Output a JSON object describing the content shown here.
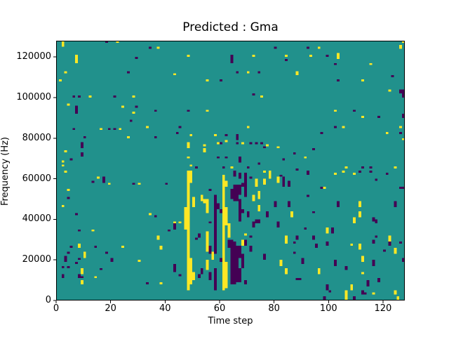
{
  "chart_data": {
    "type": "heatmap",
    "title": "Predicted : Gma",
    "xlabel": "Time step",
    "ylabel": "Frequency (Hz)",
    "x_range": [
      0,
      128
    ],
    "y_range": [
      0,
      128000
    ],
    "grid_shape": [
      128,
      128
    ],
    "bin_height_hz": 1000,
    "colormap": "viridis",
    "value_colors": {
      "low": "#440154",
      "mid": "#21918c",
      "high": "#fde725"
    },
    "background_color": "#ffffff",
    "axis_color": "#000000",
    "x_tick_values": [
      0,
      20,
      40,
      60,
      80,
      100,
      120
    ],
    "x_tick_labels": [
      "0",
      "20",
      "40",
      "60",
      "80",
      "100",
      "120"
    ],
    "y_tick_values": [
      0,
      20000,
      40000,
      60000,
      80000,
      100000,
      120000
    ],
    "y_tick_labels": [
      "0",
      "20000",
      "40000",
      "60000",
      "80000",
      "100000",
      "120000"
    ],
    "legend": "none",
    "grid": false,
    "runs_format": "[time_step, freq_bin_low, freq_bin_high] inclusive, freq bin 0 = 0 Hz at bottom, each bin = 1000 Hz",
    "yellow_runs": [
      [
        2,
        125,
        127
      ],
      [
        22,
        127,
        127
      ],
      [
        37,
        124,
        124
      ],
      [
        7,
        117,
        120
      ],
      [
        3,
        112,
        112
      ],
      [
        1,
        108,
        108
      ],
      [
        12,
        100,
        100
      ],
      [
        28,
        100,
        100
      ],
      [
        4,
        96,
        96
      ],
      [
        24,
        95,
        95
      ],
      [
        28,
        92,
        92
      ],
      [
        33,
        85,
        85
      ],
      [
        16,
        84,
        84
      ],
      [
        23,
        84,
        84
      ],
      [
        26,
        80,
        80
      ],
      [
        3,
        73,
        73
      ],
      [
        2,
        68,
        68
      ],
      [
        2,
        66,
        66
      ],
      [
        48,
        120,
        120
      ],
      [
        72,
        120,
        120
      ],
      [
        84,
        120,
        120
      ],
      [
        43,
        111,
        111
      ],
      [
        70,
        112,
        112
      ],
      [
        55,
        108,
        108
      ],
      [
        75,
        100,
        100
      ],
      [
        55,
        93,
        93
      ],
      [
        70,
        85,
        85
      ],
      [
        49,
        81,
        81
      ],
      [
        58,
        81,
        81
      ],
      [
        54,
        76,
        76
      ],
      [
        59,
        77,
        77
      ],
      [
        62,
        78,
        78
      ],
      [
        68,
        77,
        77
      ],
      [
        77,
        76,
        76
      ],
      [
        54,
        73,
        74
      ],
      [
        81,
        75,
        75
      ],
      [
        48,
        75,
        77
      ],
      [
        48,
        70,
        70
      ],
      [
        49,
        66,
        66
      ],
      [
        64,
        65,
        65
      ],
      [
        127,
        127,
        127
      ],
      [
        126,
        124,
        125
      ],
      [
        96,
        124,
        124
      ],
      [
        93,
        120,
        120
      ],
      [
        103,
        119,
        121
      ],
      [
        115,
        116,
        116
      ],
      [
        88,
        111,
        112
      ],
      [
        112,
        108,
        108
      ],
      [
        122,
        103,
        103
      ],
      [
        102,
        93,
        93
      ],
      [
        112,
        90,
        90
      ],
      [
        105,
        85,
        85
      ],
      [
        126,
        85,
        85
      ],
      [
        121,
        82,
        82
      ],
      [
        127,
        79,
        79
      ],
      [
        91,
        70,
        70
      ],
      [
        106,
        65,
        65
      ],
      [
        124,
        65,
        65
      ],
      [
        3,
        63,
        63
      ],
      [
        15,
        60,
        60
      ],
      [
        19,
        57,
        57
      ],
      [
        30,
        57,
        57
      ],
      [
        4,
        54,
        54
      ],
      [
        2,
        46,
        46
      ],
      [
        34,
        42,
        42
      ],
      [
        43,
        38,
        38
      ],
      [
        13,
        34,
        34
      ],
      [
        37,
        30,
        31
      ],
      [
        38,
        25,
        26
      ],
      [
        8,
        26,
        27
      ],
      [
        24,
        26,
        26
      ],
      [
        10,
        21,
        23
      ],
      [
        30,
        19,
        19
      ],
      [
        9,
        13,
        15
      ],
      [
        14,
        11,
        11
      ],
      [
        9,
        8,
        9
      ],
      [
        38,
        8,
        8
      ],
      [
        48,
        5,
        63
      ],
      [
        49,
        58,
        63
      ],
      [
        49,
        8,
        20
      ],
      [
        47,
        35,
        45
      ],
      [
        50,
        46,
        50
      ],
      [
        50,
        10,
        13
      ],
      [
        61,
        5,
        61
      ],
      [
        62,
        37,
        45
      ],
      [
        62,
        6,
        18
      ],
      [
        62,
        56,
        58
      ],
      [
        63,
        31,
        37
      ],
      [
        55,
        43,
        49
      ],
      [
        55,
        24,
        33
      ],
      [
        55,
        15,
        19
      ],
      [
        57,
        20,
        23
      ],
      [
        53,
        49,
        51
      ],
      [
        54,
        48,
        49
      ],
      [
        45,
        38,
        38
      ],
      [
        72,
        49,
        51
      ],
      [
        74,
        50,
        53
      ],
      [
        74,
        44,
        46
      ],
      [
        73,
        56,
        59
      ],
      [
        76,
        57,
        59
      ],
      [
        81,
        58,
        60
      ],
      [
        78,
        60,
        62
      ],
      [
        76,
        63,
        63
      ],
      [
        78,
        63,
        63
      ],
      [
        68,
        27,
        29
      ],
      [
        69,
        32,
        32
      ],
      [
        84,
        28,
        31
      ],
      [
        82,
        17,
        19
      ],
      [
        84,
        13,
        15
      ],
      [
        102,
        62,
        62
      ],
      [
        105,
        63,
        63
      ],
      [
        109,
        62,
        62
      ],
      [
        98,
        55,
        55
      ],
      [
        111,
        46,
        48
      ],
      [
        86,
        41,
        43
      ],
      [
        111,
        41,
        43
      ],
      [
        109,
        38,
        40
      ],
      [
        99,
        33,
        35
      ],
      [
        122,
        29,
        31
      ],
      [
        108,
        27,
        27
      ],
      [
        111,
        25,
        27
      ],
      [
        124,
        23,
        25
      ],
      [
        112,
        19,
        21
      ],
      [
        96,
        13,
        15
      ],
      [
        112,
        13,
        13
      ],
      [
        108,
        5,
        7
      ],
      [
        106,
        0,
        4
      ],
      [
        116,
        3,
        3
      ],
      [
        124,
        3,
        4
      ],
      [
        125,
        0,
        1
      ]
    ],
    "purple_runs": [
      [
        18,
        127,
        127
      ],
      [
        34,
        124,
        124
      ],
      [
        29,
        119,
        119
      ],
      [
        26,
        112,
        112
      ],
      [
        6,
        100,
        100
      ],
      [
        8,
        100,
        100
      ],
      [
        21,
        100,
        100
      ],
      [
        7,
        92,
        95
      ],
      [
        29,
        95,
        95
      ],
      [
        36,
        93,
        93
      ],
      [
        27,
        88,
        88
      ],
      [
        6,
        84,
        84
      ],
      [
        19,
        84,
        84
      ],
      [
        21,
        84,
        84
      ],
      [
        10,
        80,
        80
      ],
      [
        36,
        80,
        80
      ],
      [
        9,
        75,
        77
      ],
      [
        9,
        71,
        72
      ],
      [
        5,
        69,
        69
      ],
      [
        80,
        124,
        124
      ],
      [
        64,
        117,
        120
      ],
      [
        84,
        118,
        118
      ],
      [
        66,
        112,
        112
      ],
      [
        74,
        112,
        112
      ],
      [
        60,
        108,
        108
      ],
      [
        72,
        101,
        101
      ],
      [
        48,
        93,
        93
      ],
      [
        45,
        85,
        85
      ],
      [
        44,
        82,
        82
      ],
      [
        62,
        81,
        81
      ],
      [
        66,
        79,
        81
      ],
      [
        60,
        77,
        77
      ],
      [
        66,
        77,
        77
      ],
      [
        71,
        77,
        77
      ],
      [
        73,
        77,
        77
      ],
      [
        75,
        77,
        77
      ],
      [
        76,
        75,
        75
      ],
      [
        59,
        70,
        70
      ],
      [
        62,
        70,
        70
      ],
      [
        67,
        68,
        70
      ],
      [
        51,
        65,
        65
      ],
      [
        61,
        65,
        65
      ],
      [
        70,
        65,
        65
      ],
      [
        74,
        67,
        67
      ],
      [
        83,
        69,
        69
      ],
      [
        92,
        124,
        124
      ],
      [
        99,
        120,
        120
      ],
      [
        102,
        116,
        116
      ],
      [
        103,
        108,
        108
      ],
      [
        123,
        110,
        110
      ],
      [
        126,
        102,
        103
      ],
      [
        127,
        100,
        103
      ],
      [
        109,
        93,
        93
      ],
      [
        118,
        90,
        90
      ],
      [
        127,
        90,
        91
      ],
      [
        126,
        82,
        82
      ],
      [
        102,
        85,
        85
      ],
      [
        97,
        82,
        82
      ],
      [
        94,
        74,
        74
      ],
      [
        87,
        72,
        72
      ],
      [
        112,
        65,
        65
      ],
      [
        115,
        65,
        65
      ],
      [
        88,
        64,
        64
      ],
      [
        13,
        58,
        58
      ],
      [
        17,
        58,
        60
      ],
      [
        28,
        57,
        57
      ],
      [
        40,
        57,
        57
      ],
      [
        4,
        50,
        50
      ],
      [
        7,
        42,
        42
      ],
      [
        36,
        41,
        41
      ],
      [
        8,
        34,
        34
      ],
      [
        41,
        34,
        34
      ],
      [
        5,
        26,
        26
      ],
      [
        14,
        26,
        26
      ],
      [
        4,
        23,
        23
      ],
      [
        3,
        19,
        21
      ],
      [
        8,
        20,
        20
      ],
      [
        18,
        23,
        23
      ],
      [
        20,
        19,
        20
      ],
      [
        2,
        16,
        16
      ],
      [
        4,
        16,
        16
      ],
      [
        7,
        18,
        18
      ],
      [
        16,
        15,
        15
      ],
      [
        2,
        11,
        12
      ],
      [
        8,
        11,
        12
      ],
      [
        9,
        11,
        11
      ],
      [
        33,
        8,
        8
      ],
      [
        43,
        35,
        38
      ],
      [
        43,
        14,
        17
      ],
      [
        45,
        12,
        12
      ],
      [
        52,
        31,
        32
      ],
      [
        51,
        30,
        30
      ],
      [
        53,
        13,
        15
      ],
      [
        52,
        11,
        12
      ],
      [
        56,
        38,
        38
      ],
      [
        56,
        54,
        54
      ],
      [
        56,
        23,
        26
      ],
      [
        56,
        10,
        13
      ],
      [
        58,
        23,
        51
      ],
      [
        58,
        5,
        15
      ],
      [
        59,
        45,
        47
      ],
      [
        60,
        43,
        44
      ],
      [
        60,
        19,
        20
      ],
      [
        63,
        26,
        29
      ],
      [
        64,
        50,
        54
      ],
      [
        64,
        8,
        29
      ],
      [
        65,
        49,
        56
      ],
      [
        65,
        61,
        63
      ],
      [
        65,
        8,
        28
      ],
      [
        66,
        49,
        56
      ],
      [
        66,
        9,
        26
      ],
      [
        67,
        52,
        56
      ],
      [
        67,
        60,
        62
      ],
      [
        67,
        39,
        49
      ],
      [
        67,
        21,
        26
      ],
      [
        67,
        9,
        15
      ],
      [
        68,
        56,
        57
      ],
      [
        68,
        43,
        44
      ],
      [
        68,
        16,
        22
      ],
      [
        69,
        51,
        62
      ],
      [
        69,
        27,
        29
      ],
      [
        69,
        8,
        9
      ],
      [
        70,
        41,
        43
      ],
      [
        71,
        24,
        26
      ],
      [
        71,
        31,
        31
      ],
      [
        71,
        60,
        60
      ],
      [
        72,
        36,
        38
      ],
      [
        73,
        38,
        39
      ],
      [
        74,
        38,
        39
      ],
      [
        76,
        20,
        22
      ],
      [
        77,
        41,
        43
      ],
      [
        80,
        46,
        48
      ],
      [
        81,
        36,
        38
      ],
      [
        82,
        61,
        61
      ],
      [
        83,
        56,
        60
      ],
      [
        85,
        46,
        48
      ],
      [
        85,
        56,
        58
      ],
      [
        92,
        62,
        63
      ],
      [
        111,
        63,
        63
      ],
      [
        115,
        63,
        63
      ],
      [
        121,
        62,
        62
      ],
      [
        117,
        59,
        59
      ],
      [
        97,
        55,
        55
      ],
      [
        126,
        55,
        55
      ],
      [
        127,
        55,
        55
      ],
      [
        92,
        51,
        51
      ],
      [
        103,
        46,
        48
      ],
      [
        124,
        46,
        48
      ],
      [
        94,
        43,
        43
      ],
      [
        116,
        39,
        40
      ],
      [
        117,
        38,
        39
      ],
      [
        101,
        33,
        35
      ],
      [
        91,
        35,
        35
      ],
      [
        88,
        30,
        31
      ],
      [
        94,
        30,
        31
      ],
      [
        117,
        31,
        31
      ],
      [
        116,
        28,
        29
      ],
      [
        87,
        28,
        28
      ],
      [
        95,
        26,
        27
      ],
      [
        99,
        27,
        28
      ],
      [
        122,
        27,
        28
      ],
      [
        126,
        28,
        28
      ],
      [
        120,
        24,
        24
      ],
      [
        87,
        23,
        23
      ],
      [
        90,
        18,
        20
      ],
      [
        102,
        17,
        19
      ],
      [
        116,
        17,
        19
      ],
      [
        127,
        19,
        20
      ],
      [
        106,
        15,
        16
      ],
      [
        88,
        10,
        10
      ],
      [
        89,
        10,
        10
      ],
      [
        114,
        7,
        9
      ],
      [
        118,
        9,
        10
      ],
      [
        99,
        5,
        7
      ],
      [
        100,
        4,
        4
      ],
      [
        112,
        3,
        4
      ],
      [
        113,
        3,
        3
      ],
      [
        98,
        0,
        1
      ],
      [
        109,
        0,
        1
      ]
    ]
  }
}
